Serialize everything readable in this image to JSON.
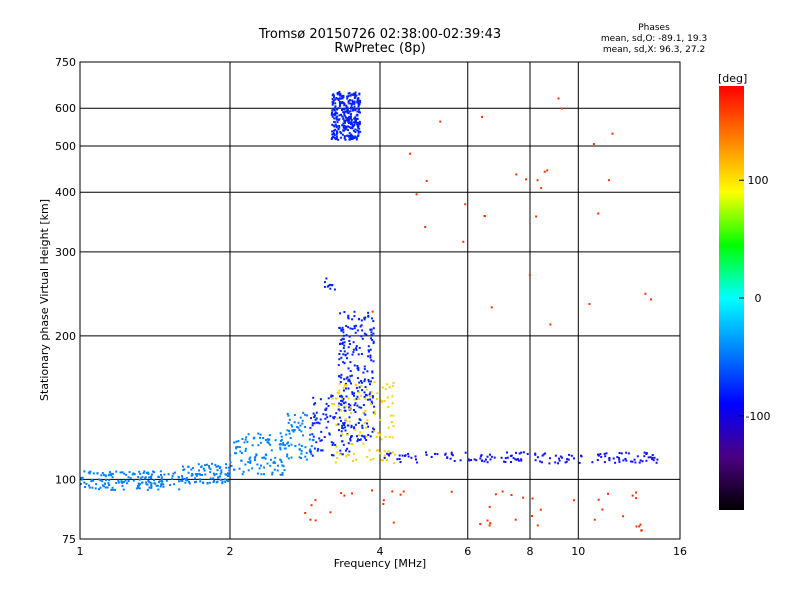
{
  "header": {
    "title": "Tromsø 20150726 02:38:00-02:39:43",
    "subtitle": "RwPretec (8p)",
    "phases_title": "Phases",
    "phases_o": "mean, sd,O: -89.1, 19.3",
    "phases_x": "mean, sd,X:  96.3, 27.2"
  },
  "chart_data": {
    "type": "scatter",
    "title": "Tromsø 20150726 02:38:00-02:39:43",
    "subtitle": "RwPretec (8p)",
    "xlabel": "Frequency [MHz]",
    "ylabel": "Stationary phase Virtual Height [km]",
    "xscale": "log",
    "yscale": "log",
    "xlim": [
      1,
      16
    ],
    "ylim": [
      75,
      750
    ],
    "x_ticks": [
      1,
      2,
      4,
      6,
      8,
      10,
      16
    ],
    "x_tick_labels": [
      "1",
      "2",
      "4",
      "6",
      "8",
      "10",
      "16"
    ],
    "y_ticks": [
      75,
      100,
      200,
      300,
      400,
      500,
      600,
      750
    ],
    "y_tick_labels": [
      "75",
      "100",
      "200",
      "300",
      "400",
      "500",
      "600",
      "750"
    ],
    "grid": true,
    "colorbar": {
      "label": "[deg]",
      "range": [
        -180,
        180
      ],
      "ticks": [
        100,
        0,
        -100
      ],
      "tick_labels": [
        "100",
        "0",
        "-100"
      ],
      "colors": [
        "#000000",
        "#4b0082",
        "#0000ff",
        "#0080ff",
        "#00ffff",
        "#00ff00",
        "#ffff00",
        "#ff8000",
        "#ff0000"
      ]
    },
    "series": [
      {
        "description": "lower-frequency trace",
        "color": "#0080ff",
        "clusters": [
          {
            "f": [
              1.0,
              1.6
            ],
            "h": [
              95,
              104
            ],
            "n": 160
          },
          {
            "f": [
              1.6,
              2.0
            ],
            "h": [
              98,
              108
            ],
            "n": 90
          },
          {
            "f": [
              2.0,
              2.6
            ],
            "h": [
              102,
              125
            ],
            "n": 110
          },
          {
            "f": [
              2.6,
              2.95
            ],
            "h": [
              110,
              140
            ],
            "n": 60
          }
        ]
      },
      {
        "description": "blue trace",
        "color": "#0020ff",
        "clusters": [
          {
            "f": [
              3.2,
              3.65
            ],
            "h": [
              515,
              650
            ],
            "n": 320
          },
          {
            "f": [
              3.05,
              3.25
            ],
            "h": [
              250,
              265
            ],
            "n": 10
          },
          {
            "f": [
              3.3,
              3.9
            ],
            "h": [
              120,
              225
            ],
            "n": 240
          },
          {
            "f": [
              2.9,
              3.5
            ],
            "h": [
              112,
              150
            ],
            "n": 90
          }
        ]
      },
      {
        "description": "warm points",
        "color": "#ffd000",
        "clusters": [
          {
            "f": [
              3.2,
              4.3
            ],
            "h": [
              108,
              160
            ],
            "n": 110
          }
        ]
      },
      {
        "description": "horizontal line",
        "color": "#1010ff",
        "clusters": [
          {
            "f": [
              4.0,
              14.5
            ],
            "h": [
              108,
              114
            ],
            "n": 150
          }
        ]
      },
      {
        "description": "scattered points",
        "color": "#ff3000",
        "clusters": [
          {
            "f": [
              2.8,
              14.0
            ],
            "h": [
              78,
              95
            ],
            "n": 45
          },
          {
            "f": [
              3.8,
              14.0
            ],
            "h": [
              200,
              650
            ],
            "n": 30
          }
        ]
      }
    ]
  }
}
